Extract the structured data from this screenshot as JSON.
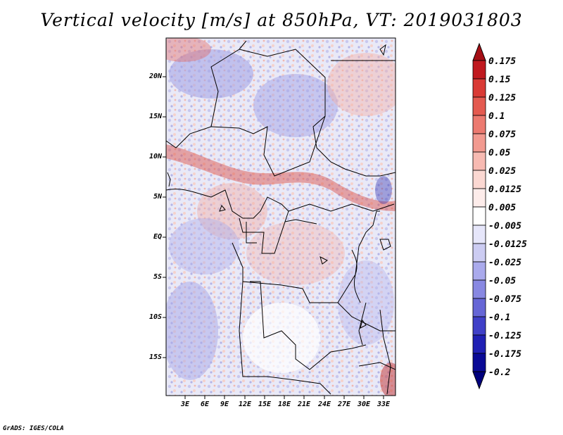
{
  "title": "Vertical velocity [m/s] at 850hPa, VT: 2019031803",
  "credit": "GrADS: IGES/COLA",
  "map": {
    "lat_labels": [
      "20N",
      "15N",
      "10N",
      "5N",
      "EQ",
      "5S",
      "10S",
      "15S"
    ],
    "lon_labels": [
      "3E",
      "6E",
      "9E",
      "12E",
      "15E",
      "18E",
      "21E",
      "24E",
      "27E",
      "30E",
      "33E"
    ]
  },
  "colorbar": {
    "labels": [
      "0.175",
      "0.15",
      "0.125",
      "0.1",
      "0.075",
      "0.05",
      "0.025",
      "0.0125",
      "0.005",
      "-0.005",
      "-0.0125",
      "-0.025",
      "-0.05",
      "-0.075",
      "-0.1",
      "-0.125",
      "-0.175",
      "-0.2"
    ],
    "colors": [
      "#a50f15",
      "#c0191f",
      "#d93a35",
      "#e45a50",
      "#ec7a70",
      "#f29a90",
      "#f7bab2",
      "#fbd8d2",
      "#fdecea",
      "#ffffff",
      "#e6e6fa",
      "#ccccf2",
      "#aaaaec",
      "#8888e2",
      "#6666d6",
      "#4040c8",
      "#2020b4",
      "#0a0a96",
      "#00007d"
    ]
  }
}
